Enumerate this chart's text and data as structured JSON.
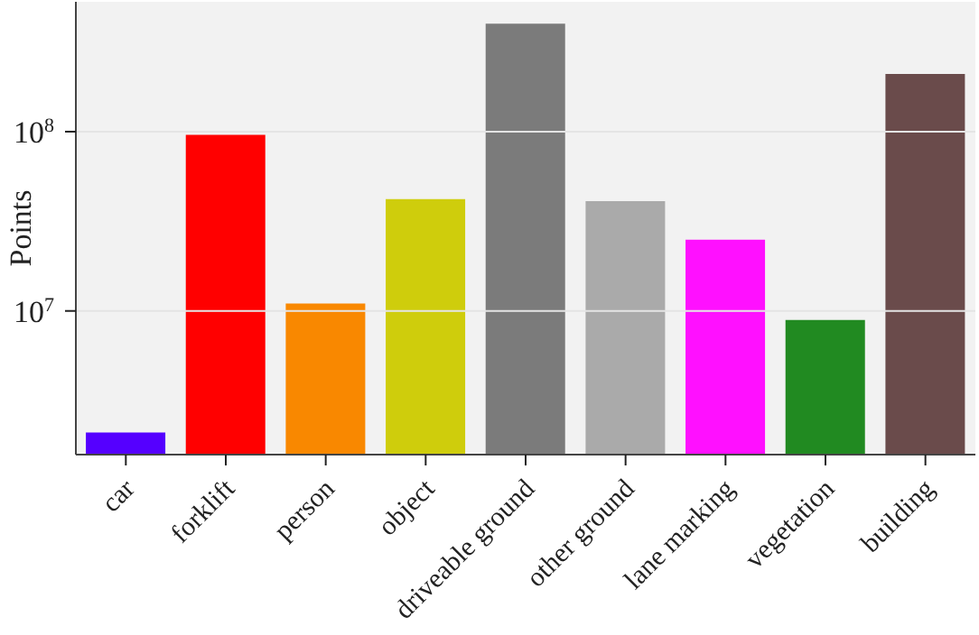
{
  "chart_data": {
    "type": "bar",
    "ylabel": "Points",
    "categories": [
      "car",
      "forklift",
      "person",
      "object",
      "driveable ground",
      "other ground",
      "lane marking",
      "vegetation",
      "building"
    ],
    "values": [
      2100000,
      96000000,
      11000000,
      42000000,
      400000000,
      41000000,
      25000000,
      8900000,
      210000000
    ],
    "colors": [
      "#5500ff",
      "#ff0000",
      "#f98800",
      "#cfcd0c",
      "#7b7b7b",
      "#aaaaaa",
      "#ff10ff",
      "#218a21",
      "#6a4b4b"
    ],
    "log": true,
    "ylim": [
      1580000,
      530000000
    ],
    "yticks": [
      {
        "value": 10000000,
        "label": "10$^{7}$"
      },
      {
        "value": 100000000,
        "label": "10$^{8}$"
      }
    ],
    "grid": "y"
  }
}
